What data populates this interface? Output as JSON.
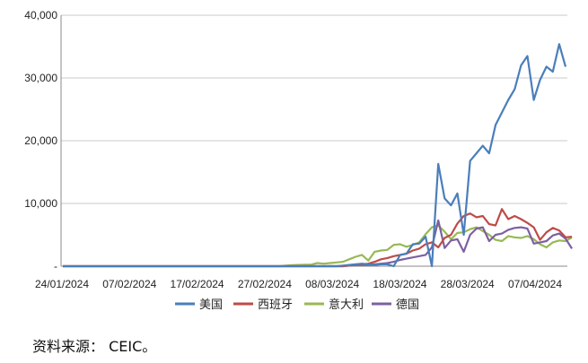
{
  "source_note": "资料来源： CEIC。",
  "chart_data": {
    "type": "line",
    "title": "",
    "xlabel": "",
    "ylabel": "",
    "ylim": [
      0,
      40000
    ],
    "y_ticks": [
      {
        "value": 0,
        "label": "-"
      },
      {
        "value": 10000,
        "label": "10,000"
      },
      {
        "value": 20000,
        "label": "20,000"
      },
      {
        "value": 30000,
        "label": "30,000"
      },
      {
        "value": 40000,
        "label": "40,000"
      }
    ],
    "x_tick_labels": [
      "24/01/2024",
      "07/02/2024",
      "17/02/2024",
      "27/02/2024",
      "08/03/2024",
      "18/03/2024",
      "28/03/2024",
      "07/04/2024"
    ],
    "grid": "horizontal",
    "legend_position": "bottom",
    "series": [
      {
        "name": "美国",
        "color": "#4a7ebb",
        "values": [
          0,
          0,
          0,
          0,
          0,
          0,
          0,
          0,
          0,
          0,
          0,
          0,
          0,
          0,
          0,
          0,
          0,
          0,
          0,
          0,
          0,
          0,
          0,
          0,
          0,
          0,
          0,
          0,
          0,
          0,
          0,
          0,
          0,
          0,
          0,
          0,
          0,
          0,
          0,
          0,
          0,
          0,
          0,
          0,
          100,
          200,
          300,
          400,
          300,
          200,
          300,
          300,
          0,
          1800,
          2000,
          3500,
          3600,
          4700,
          0,
          16300,
          10800,
          9700,
          11600,
          5000,
          16800,
          18000,
          19200,
          18000,
          22500,
          24500,
          26500,
          28200,
          32000,
          33500,
          26500,
          29700,
          31800,
          31000,
          35400,
          31800
        ]
      },
      {
        "name": "西班牙",
        "color": "#be4b48",
        "values": [
          0,
          0,
          0,
          0,
          0,
          0,
          0,
          0,
          0,
          0,
          0,
          0,
          0,
          0,
          0,
          0,
          0,
          0,
          0,
          0,
          0,
          0,
          0,
          0,
          0,
          0,
          0,
          0,
          0,
          0,
          0,
          0,
          0,
          0,
          0,
          0,
          0,
          0,
          0,
          0,
          0,
          0,
          0,
          0,
          0,
          100,
          200,
          300,
          400,
          700,
          1100,
          1300,
          1600,
          1800,
          2000,
          2500,
          2800,
          3500,
          3800,
          3000,
          4500,
          5000,
          6800,
          8000,
          8400,
          7800,
          8000,
          6700,
          6500,
          9100,
          7500,
          8000,
          7500,
          6900,
          6200,
          4200,
          5400,
          6100,
          5700,
          4600,
          4700
        ]
      },
      {
        "name": "意大利",
        "color": "#98b954",
        "values": [
          0,
          0,
          0,
          0,
          0,
          0,
          0,
          0,
          0,
          0,
          0,
          0,
          0,
          0,
          0,
          0,
          0,
          0,
          0,
          0,
          0,
          0,
          0,
          0,
          0,
          0,
          0,
          0,
          0,
          0,
          0,
          0,
          0,
          0,
          0,
          100,
          150,
          200,
          250,
          250,
          500,
          400,
          500,
          600,
          700,
          1100,
          1500,
          1800,
          900,
          2300,
          2500,
          2600,
          3400,
          3500,
          3100,
          3400,
          3800,
          5100,
          6200,
          6500,
          5500,
          4300,
          5300,
          5400,
          5900,
          6200,
          5600,
          5000,
          4200,
          4000,
          4800,
          4600,
          4500,
          4800,
          4300,
          3500,
          3000,
          3800,
          4100,
          4000,
          4600
        ]
      },
      {
        "name": "德国",
        "color": "#7d60a0",
        "values": [
          0,
          0,
          0,
          0,
          0,
          0,
          0,
          0,
          0,
          0,
          0,
          0,
          0,
          0,
          0,
          0,
          0,
          0,
          0,
          0,
          0,
          0,
          0,
          0,
          0,
          0,
          0,
          0,
          0,
          0,
          0,
          0,
          0,
          0,
          0,
          0,
          0,
          0,
          0,
          0,
          0,
          0,
          0,
          0,
          0,
          100,
          200,
          200,
          200,
          300,
          400,
          500,
          700,
          1000,
          1200,
          1400,
          1600,
          1800,
          3000,
          7300,
          2900,
          4100,
          4300,
          2300,
          5000,
          6000,
          6200,
          4000,
          5000,
          5200,
          5800,
          6100,
          6200,
          6000,
          3600,
          3800,
          4000,
          4900,
          5200,
          4400,
          2800
        ]
      }
    ]
  }
}
